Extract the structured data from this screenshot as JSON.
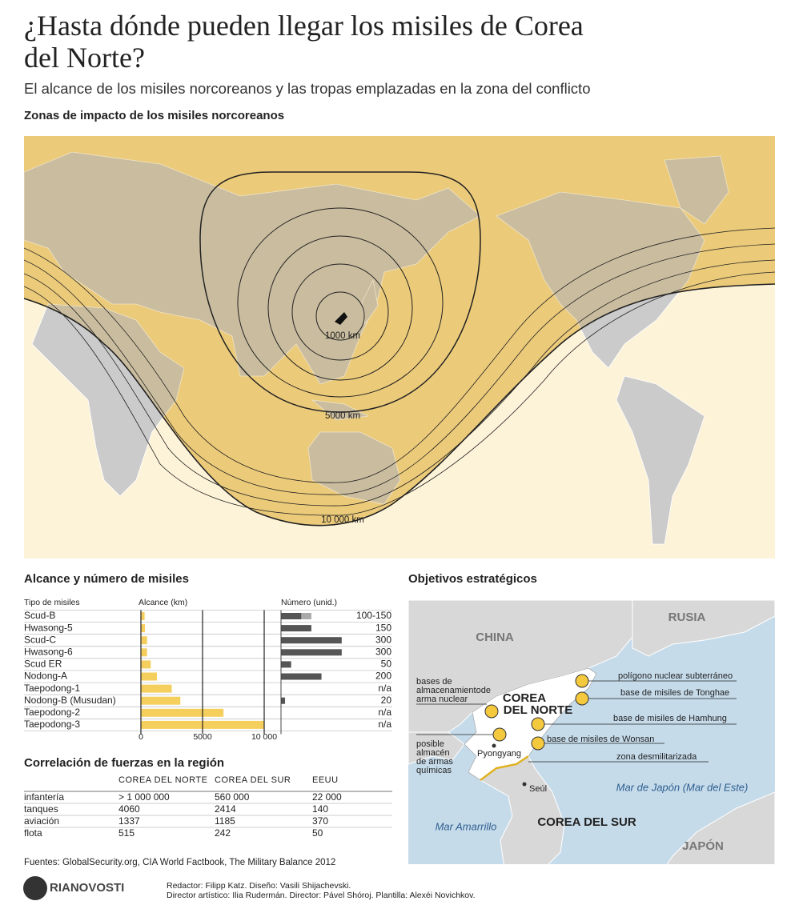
{
  "header": {
    "title": "¿Hasta dónde pueden llegar los misiles de Corea del Norte?",
    "subtitle": "El alcance de los misiles norcoreanos y las tropas emplazadas en la zona del conflicto"
  },
  "impact_map": {
    "title": "Zonas de impacto de los misiles norcoreanos",
    "range_labels": [
      "1000 km",
      "5000 km",
      "10 000 km"
    ]
  },
  "chart_data": {
    "type": "bar",
    "orientation": "horizontal",
    "title": "Alcance y número de misiles",
    "category_header": "Tipo de misiles",
    "categories": [
      "Scud-B",
      "Hwasong-5",
      "Scud-C",
      "Hwasong-6",
      "Scud ER",
      "Nodong-A",
      "Taepodong-1",
      "Nodong-B (Musudan)",
      "Taepodong-2",
      "Taepodong-3"
    ],
    "series": [
      {
        "name": "Alcance (km)",
        "color": "#f5cf5e",
        "values": [
          300,
          330,
          500,
          500,
          800,
          1300,
          2500,
          3200,
          6700,
          10000
        ],
        "xlim": [
          0,
          10000
        ],
        "xticks": [
          0,
          5000,
          {
            "value": 10000,
            "label": "10 000"
          }
        ]
      },
      {
        "name": "Número (unid.)",
        "color": "#555555",
        "upper_color": "#aaaaaa",
        "values": [
          100,
          150,
          300,
          300,
          50,
          200,
          null,
          20,
          null,
          null
        ],
        "upper_values": [
          150,
          null,
          null,
          null,
          null,
          null,
          null,
          null,
          null,
          null
        ],
        "value_labels": [
          "100-150",
          "150",
          "300",
          "300",
          "50",
          "200",
          "n/a",
          "20",
          "n/a",
          "n/a"
        ],
        "xlim": [
          0,
          550
        ]
      }
    ]
  },
  "forces_table": {
    "title": "Correlación de fuerzas en la región",
    "columns": [
      "COREA DEL NORTE",
      "COREA DEL SUR",
      "EEUU"
    ],
    "rows": [
      {
        "label": "infantería",
        "values": [
          "> 1 000 000",
          "560 000",
          "22 000"
        ]
      },
      {
        "label": "tanques",
        "values": [
          "4060",
          "2414",
          "140"
        ]
      },
      {
        "label": "aviación",
        "values": [
          "1337",
          "1185",
          "370"
        ]
      },
      {
        "label": "flota",
        "values": [
          "515",
          "242",
          "50"
        ]
      }
    ]
  },
  "strategic_map": {
    "title": "Objetivos estratégicos",
    "regions": [
      "CHINA",
      "RUSIA",
      "COREA DEL SUR",
      "JAPÓN"
    ],
    "north_korea": [
      "COREA",
      "DEL NORTE"
    ],
    "seas": [
      "Mar de Japón (Mar del Este)",
      "Mar Amarrillo"
    ],
    "cities": [
      "Pyongyang",
      "Seúl"
    ],
    "targets": [
      {
        "lines": [
          "bases de",
          "almacenamientode",
          "arma nuclear"
        ]
      },
      {
        "lines": [
          "polígono nuclear subterráneo"
        ]
      },
      {
        "lines": [
          "base de misiles de Tonghae"
        ]
      },
      {
        "lines": [
          "base de misiles de Hamhung"
        ]
      },
      {
        "lines": [
          "base de misiles de Wonsan"
        ]
      },
      {
        "lines": [
          "zona desmilitarizada"
        ]
      },
      {
        "lines": [
          "posible",
          "almacén",
          "de armas",
          "químicas"
        ]
      }
    ]
  },
  "footer": {
    "sources": "Fuentes: GlobalSecurity.org, CIA World Factbook, The Military Balance 2012",
    "logo": "RIANOVOSTI",
    "credits": [
      "Redactor: Filipp Katz. Diseño: Vasili Shijachevski.",
      "Director artístico: Ilia Rudermán. Director: Pável Shóroj. Plantilla: Alexéi Novichkov."
    ]
  }
}
